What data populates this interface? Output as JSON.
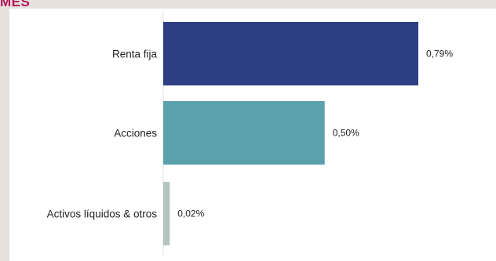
{
  "header": {
    "title": "MES"
  },
  "chart_data": {
    "type": "bar",
    "orientation": "horizontal",
    "categories": [
      "Renta fija",
      "Acciones",
      "Activos líquidos & otros"
    ],
    "values": [
      0.79,
      0.5,
      0.02
    ],
    "value_labels": [
      "0,79%",
      "0,50%",
      "0,02%"
    ],
    "colors": [
      "#2d3e84",
      "#5ba0ad",
      "#b1c4bf"
    ],
    "axis_color": "#e3e3e3",
    "title": "",
    "xlabel": "",
    "ylabel": "",
    "grid": false
  }
}
